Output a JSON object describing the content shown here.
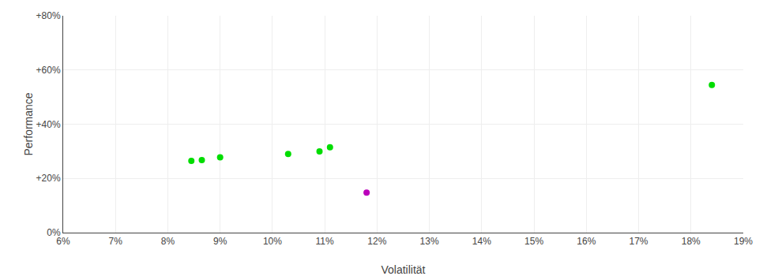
{
  "chart_data": {
    "type": "scatter",
    "xlabel": "Volatilität",
    "ylabel": "Performance",
    "xlim": [
      0.06,
      0.19
    ],
    "ylim": [
      0.0,
      0.8
    ],
    "xticks": [
      {
        "value": 0.06,
        "label": "6%"
      },
      {
        "value": 0.07,
        "label": "7%"
      },
      {
        "value": 0.08,
        "label": "8%"
      },
      {
        "value": 0.09,
        "label": "9%"
      },
      {
        "value": 0.1,
        "label": "10%"
      },
      {
        "value": 0.11,
        "label": "11%"
      },
      {
        "value": 0.12,
        "label": "12%"
      },
      {
        "value": 0.13,
        "label": "13%"
      },
      {
        "value": 0.14,
        "label": "14%"
      },
      {
        "value": 0.15,
        "label": "15%"
      },
      {
        "value": 0.16,
        "label": "16%"
      },
      {
        "value": 0.17,
        "label": "17%"
      },
      {
        "value": 0.18,
        "label": "18%"
      },
      {
        "value": 0.19,
        "label": "19%"
      }
    ],
    "yticks": [
      {
        "value": 0.0,
        "label": "0%"
      },
      {
        "value": 0.2,
        "label": "+20%"
      },
      {
        "value": 0.4,
        "label": "+40%"
      },
      {
        "value": 0.6,
        "label": "+60%"
      },
      {
        "value": 0.8,
        "label": "+80%"
      }
    ],
    "grid": true,
    "series": [
      {
        "color": "#00dd00",
        "x": [
          0.0845,
          0.0865,
          0.09,
          0.103,
          0.109,
          0.111,
          0.184
        ],
        "values": [
          0.265,
          0.268,
          0.278,
          0.29,
          0.3,
          0.315,
          0.545
        ]
      },
      {
        "color": "#bb00bb",
        "x": [
          0.118
        ],
        "values": [
          0.148
        ]
      }
    ]
  }
}
